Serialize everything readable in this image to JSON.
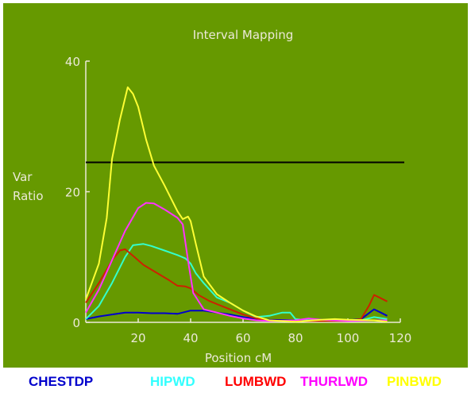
{
  "chart_data": {
    "type": "line",
    "title": "Interval Mapping",
    "xlabel": "Position cM",
    "ylabel_line1": "Var",
    "ylabel_line2": "Ratio",
    "xlim": [
      0,
      120
    ],
    "ylim": [
      0,
      40
    ],
    "x_ticks": [
      "20",
      "40",
      "60",
      "80",
      "100",
      "120"
    ],
    "x_tick_values": [
      20,
      40,
      60,
      80,
      100,
      120
    ],
    "y_ticks": [
      "0",
      "20",
      "40"
    ],
    "y_tick_values": [
      0,
      20,
      40
    ],
    "threshold": 24.5,
    "threshold_color": "#000000",
    "background_color": "#669900",
    "grid": false,
    "legend_position": "bottom",
    "series": [
      {
        "name": "CHESTDP",
        "color": "#0000cc",
        "points": [
          [
            0,
            0.5
          ],
          [
            5,
            0.9
          ],
          [
            10,
            1.2
          ],
          [
            15,
            1.5
          ],
          [
            20,
            1.5
          ],
          [
            25,
            1.4
          ],
          [
            30,
            1.4
          ],
          [
            35,
            1.3
          ],
          [
            40,
            1.8
          ],
          [
            45,
            1.8
          ],
          [
            50,
            1.5
          ],
          [
            55,
            1.2
          ],
          [
            60,
            0.8
          ],
          [
            65,
            0.5
          ],
          [
            70,
            0.4
          ],
          [
            80,
            0.3
          ],
          [
            90,
            0.3
          ],
          [
            100,
            0.3
          ],
          [
            105,
            0.5
          ],
          [
            110,
            2.0
          ],
          [
            112,
            1.6
          ],
          [
            115,
            1.0
          ]
        ]
      },
      {
        "name": "HIPWD",
        "color": "#33ffcc",
        "points": [
          [
            0,
            0.5
          ],
          [
            5,
            2.5
          ],
          [
            10,
            6.0
          ],
          [
            15,
            10.0
          ],
          [
            18,
            11.8
          ],
          [
            22,
            12.0
          ],
          [
            25,
            11.7
          ],
          [
            30,
            11.0
          ],
          [
            35,
            10.3
          ],
          [
            38,
            9.8
          ],
          [
            40,
            9.0
          ],
          [
            42,
            7.5
          ],
          [
            45,
            6.0
          ],
          [
            50,
            3.8
          ],
          [
            55,
            3.0
          ],
          [
            60,
            1.8
          ],
          [
            65,
            0.8
          ],
          [
            70,
            1.0
          ],
          [
            75,
            1.5
          ],
          [
            78,
            1.5
          ],
          [
            80,
            0.5
          ],
          [
            85,
            0.3
          ],
          [
            100,
            0.3
          ],
          [
            105,
            0.3
          ],
          [
            110,
            0.8
          ],
          [
            115,
            0.5
          ]
        ]
      },
      {
        "name": "LUMBWD",
        "color": "#cc2200",
        "points": [
          [
            0,
            3.0
          ],
          [
            5,
            6.0
          ],
          [
            10,
            9.5
          ],
          [
            13,
            11.0
          ],
          [
            15,
            11.2
          ],
          [
            18,
            10.2
          ],
          [
            22,
            8.8
          ],
          [
            27,
            7.6
          ],
          [
            32,
            6.4
          ],
          [
            35,
            5.6
          ],
          [
            38,
            5.5
          ],
          [
            40,
            5.2
          ],
          [
            43,
            4.2
          ],
          [
            47,
            3.3
          ],
          [
            50,
            2.8
          ],
          [
            55,
            2.0
          ],
          [
            60,
            1.2
          ],
          [
            65,
            0.6
          ],
          [
            70,
            0.3
          ],
          [
            80,
            0.2
          ],
          [
            90,
            0.2
          ],
          [
            100,
            0.2
          ],
          [
            105,
            0.5
          ],
          [
            108,
            2.5
          ],
          [
            110,
            4.2
          ],
          [
            112,
            3.8
          ],
          [
            115,
            3.2
          ]
        ]
      },
      {
        "name": "THURLWD",
        "color": "#ff33ff",
        "points": [
          [
            0,
            1.5
          ],
          [
            5,
            5.0
          ],
          [
            10,
            9.5
          ],
          [
            15,
            14.0
          ],
          [
            20,
            17.5
          ],
          [
            23,
            18.3
          ],
          [
            26,
            18.2
          ],
          [
            30,
            17.3
          ],
          [
            35,
            16.0
          ],
          [
            37,
            15.0
          ],
          [
            39,
            9.5
          ],
          [
            41,
            4.5
          ],
          [
            45,
            2.0
          ],
          [
            50,
            1.5
          ],
          [
            55,
            1.0
          ],
          [
            60,
            0.6
          ],
          [
            65,
            0.3
          ],
          [
            70,
            0.2
          ],
          [
            80,
            0.3
          ],
          [
            85,
            0.6
          ],
          [
            90,
            0.4
          ],
          [
            100,
            0.2
          ],
          [
            110,
            0.3
          ],
          [
            115,
            0.3
          ]
        ]
      },
      {
        "name": "PINBWD",
        "color": "#ffff33",
        "points": [
          [
            0,
            3.5
          ],
          [
            5,
            9.0
          ],
          [
            8,
            16.0
          ],
          [
            10,
            25.0
          ],
          [
            13,
            31.0
          ],
          [
            16,
            36.0
          ],
          [
            18,
            35.0
          ],
          [
            20,
            33.0
          ],
          [
            23,
            28.0
          ],
          [
            26,
            24.0
          ],
          [
            30,
            21.0
          ],
          [
            35,
            17.0
          ],
          [
            37,
            15.8
          ],
          [
            39,
            16.2
          ],
          [
            40,
            15.5
          ],
          [
            42,
            12.0
          ],
          [
            45,
            7.0
          ],
          [
            50,
            4.3
          ],
          [
            55,
            3.0
          ],
          [
            60,
            1.8
          ],
          [
            65,
            0.9
          ],
          [
            70,
            0.3
          ],
          [
            80,
            0.1
          ],
          [
            90,
            0.4
          ],
          [
            95,
            0.5
          ],
          [
            100,
            0.4
          ],
          [
            110,
            0.3
          ],
          [
            115,
            0.1
          ]
        ]
      }
    ]
  }
}
